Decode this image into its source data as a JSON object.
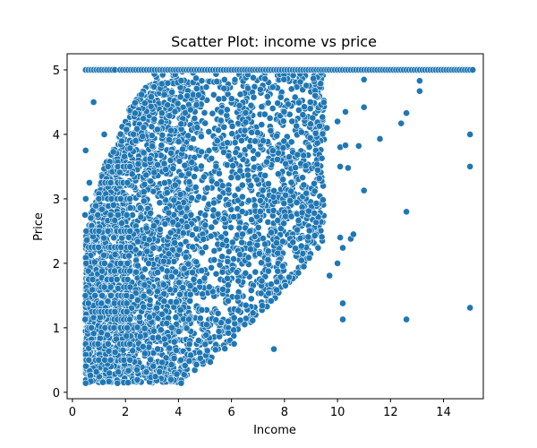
{
  "chart_data": {
    "type": "scatter",
    "title": "Scatter Plot: income vs price",
    "xlabel": "Income",
    "ylabel": "Price",
    "xlim": [
      -0.2,
      15.5
    ],
    "ylim": [
      -0.1,
      5.25
    ],
    "xticks": [
      0,
      2,
      4,
      6,
      8,
      10,
      12,
      14
    ],
    "yticks": [
      0,
      1,
      2,
      3,
      4,
      5
    ],
    "grid": false,
    "marker_color": "#1f77b4",
    "marker_edge_color": "#ffffff",
    "cap_value": 5.0,
    "outlier_points": [
      {
        "x": 15.0,
        "y": 4.0
      },
      {
        "x": 15.0,
        "y": 3.5
      },
      {
        "x": 15.0,
        "y": 1.31
      },
      {
        "x": 12.6,
        "y": 2.8
      },
      {
        "x": 12.6,
        "y": 1.13
      },
      {
        "x": 10.2,
        "y": 1.38
      },
      {
        "x": 10.2,
        "y": 1.13
      },
      {
        "x": 11.0,
        "y": 3.13
      },
      {
        "x": 11.6,
        "y": 3.93
      },
      {
        "x": 12.4,
        "y": 4.17
      },
      {
        "x": 12.6,
        "y": 4.33
      },
      {
        "x": 13.1,
        "y": 4.67
      },
      {
        "x": 13.1,
        "y": 4.83
      },
      {
        "x": 7.6,
        "y": 0.67
      },
      {
        "x": 9.7,
        "y": 1.81
      },
      {
        "x": 10.0,
        "y": 2.0
      },
      {
        "x": 10.1,
        "y": 2.4
      },
      {
        "x": 10.2,
        "y": 2.24
      },
      {
        "x": 10.5,
        "y": 2.38
      },
      {
        "x": 10.6,
        "y": 2.45
      },
      {
        "x": 10.1,
        "y": 3.5
      },
      {
        "x": 10.4,
        "y": 3.48
      },
      {
        "x": 10.1,
        "y": 3.8
      },
      {
        "x": 10.3,
        "y": 3.83
      },
      {
        "x": 10.8,
        "y": 3.82
      },
      {
        "x": 10.0,
        "y": 4.2
      },
      {
        "x": 10.3,
        "y": 4.35
      },
      {
        "x": 11.0,
        "y": 4.42
      },
      {
        "x": 11.0,
        "y": 4.85
      },
      {
        "x": 9.6,
        "y": 4.1
      },
      {
        "x": 5.2,
        "y": 0.47
      },
      {
        "x": 6.1,
        "y": 0.75
      },
      {
        "x": 4.1,
        "y": 0.14
      },
      {
        "x": 0.5,
        "y": 0.14
      },
      {
        "x": 0.5,
        "y": 3.75
      },
      {
        "x": 1.7,
        "y": 0.14
      },
      {
        "x": 2.1,
        "y": 0.15
      },
      {
        "x": 0.8,
        "y": 4.5
      },
      {
        "x": 1.2,
        "y": 4.0
      },
      {
        "x": 9.2,
        "y": 2.93
      }
    ],
    "capped_points_x": [
      0.5,
      0.6,
      0.7,
      0.8,
      0.9,
      1.0,
      1.2,
      1.3,
      1.5,
      1.8,
      2.0,
      2.2,
      2.4,
      2.6,
      2.8,
      3.0,
      3.2,
      3.4,
      3.6,
      3.8,
      4.0,
      4.2,
      4.4,
      4.6,
      4.8,
      5.0,
      5.2,
      5.4,
      5.6,
      5.8,
      6.0,
      6.2,
      6.4,
      6.6,
      6.8,
      7.0,
      7.2,
      7.4,
      7.6,
      7.8,
      8.0,
      8.2,
      8.4,
      8.6,
      8.8,
      9.0,
      9.2,
      9.4,
      9.6,
      9.8,
      10.0,
      10.2,
      10.4,
      10.6,
      10.8,
      11.0,
      11.2,
      11.4,
      11.6,
      11.8,
      12.0,
      12.2,
      12.4,
      12.6,
      12.8,
      13.0,
      13.2,
      13.4,
      13.6,
      13.8,
      14.0,
      14.2,
      14.4,
      14.6,
      14.8,
      15.0
    ],
    "grid_levels_y": [
      0.5,
      0.75,
      1.0,
      1.13,
      1.25,
      1.38,
      1.5,
      1.63,
      1.75,
      1.88,
      2.0,
      2.25,
      2.5,
      2.75,
      3.0,
      3.25,
      3.5
    ],
    "dense_cloud": {
      "x_range": [
        0.5,
        9.5
      ],
      "y_range": [
        0.15,
        5.0
      ],
      "point_count": 3800,
      "upper_edge": [
        [
          0.5,
          2.4
        ],
        [
          1.0,
          3.3
        ],
        [
          2.0,
          4.3
        ],
        [
          3.0,
          5.0
        ],
        [
          15.0,
          5.0
        ]
      ],
      "lower_edge": [
        [
          0.5,
          0.15
        ],
        [
          2.0,
          0.15
        ],
        [
          4.0,
          0.15
        ],
        [
          6.0,
          0.75
        ],
        [
          8.0,
          1.6
        ],
        [
          9.5,
          2.3
        ]
      ]
    }
  }
}
